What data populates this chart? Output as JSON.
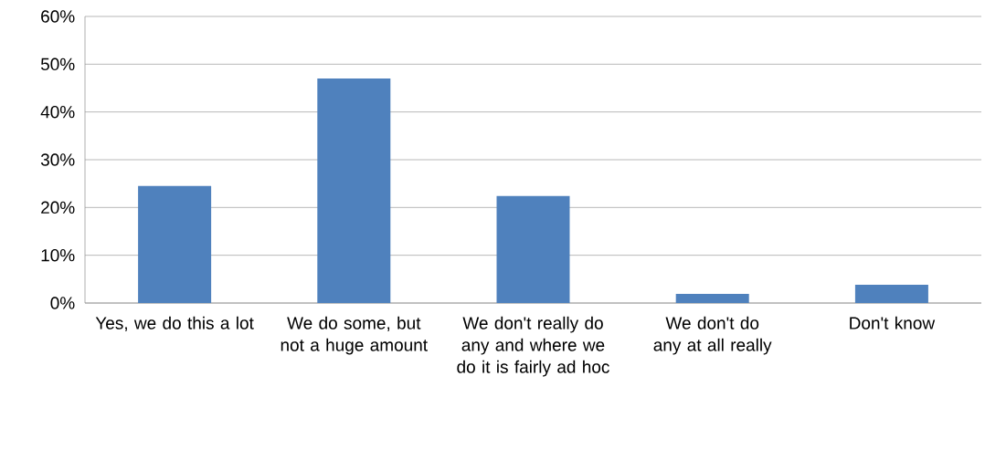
{
  "chart_data": {
    "type": "bar",
    "categories": [
      "Yes, we do this a lot",
      "We do some, but not a huge amount",
      "We don't really do any and where we do it is fairly ad hoc",
      "We don't do any at all really",
      "Don't know"
    ],
    "values": [
      24.5,
      47.0,
      22.4,
      1.9,
      3.8
    ],
    "color": "#4f81bd",
    "ylim": [
      0,
      60
    ],
    "yticks": [
      {
        "value": 0,
        "label": "0%"
      },
      {
        "value": 10,
        "label": "10%"
      },
      {
        "value": 20,
        "label": "20%"
      },
      {
        "value": 30,
        "label": "30%"
      },
      {
        "value": 40,
        "label": "40%"
      },
      {
        "value": 50,
        "label": "50%"
      },
      {
        "value": 60,
        "label": "60%"
      }
    ],
    "grid": "y"
  }
}
